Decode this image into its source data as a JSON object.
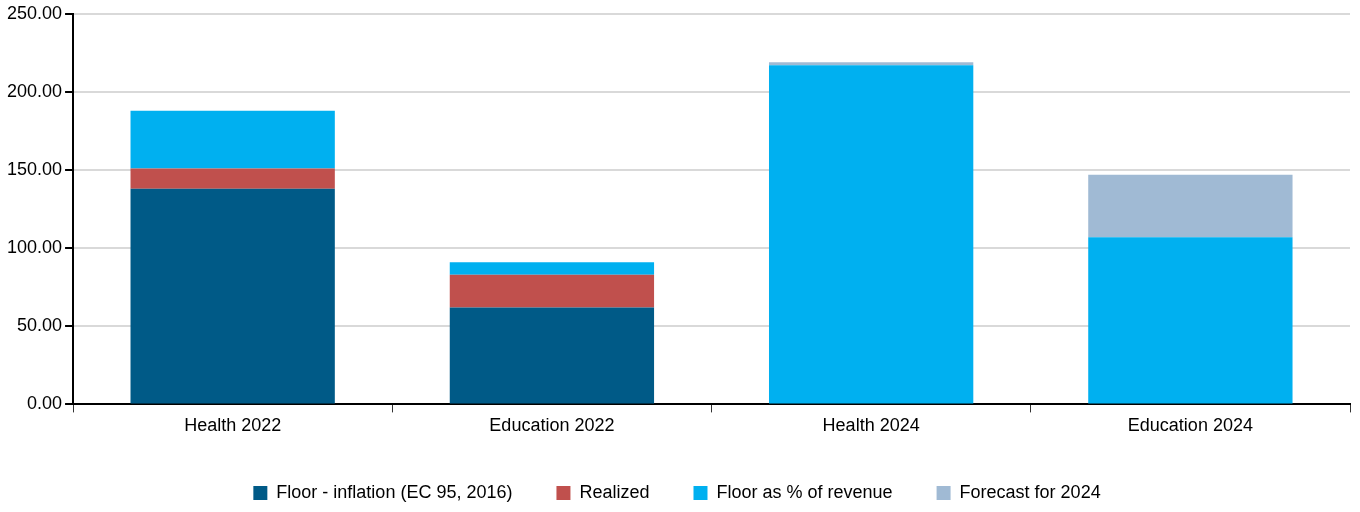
{
  "chart_data": {
    "type": "bar",
    "stacked": true,
    "categories": [
      "Health 2022",
      "Education 2022",
      "Health 2024",
      "Education 2024"
    ],
    "series": [
      {
        "name": "Floor - inflation (EC 95, 2016)",
        "color": "#005a87",
        "values": [
          138,
          62,
          null,
          null
        ]
      },
      {
        "name": "Realized",
        "color": "#c0504d",
        "values": [
          13,
          21,
          null,
          null
        ]
      },
      {
        "name": "Floor as % of revenue",
        "color": "#00b0f0",
        "values": [
          37,
          8,
          217,
          107
        ]
      },
      {
        "name": "Forecast for 2024",
        "color": "#a0bad4",
        "values": [
          null,
          null,
          2,
          40
        ]
      }
    ],
    "ylim": [
      0,
      250
    ],
    "yticks": [
      {
        "value": 0,
        "label": "0.00"
      },
      {
        "value": 50,
        "label": "50.00"
      },
      {
        "value": 100,
        "label": "100.00"
      },
      {
        "value": 150,
        "label": "150.00"
      },
      {
        "value": 200,
        "label": "200.00"
      },
      {
        "value": 250,
        "label": "250.00"
      }
    ],
    "grid": "y",
    "legend": "bottom"
  }
}
